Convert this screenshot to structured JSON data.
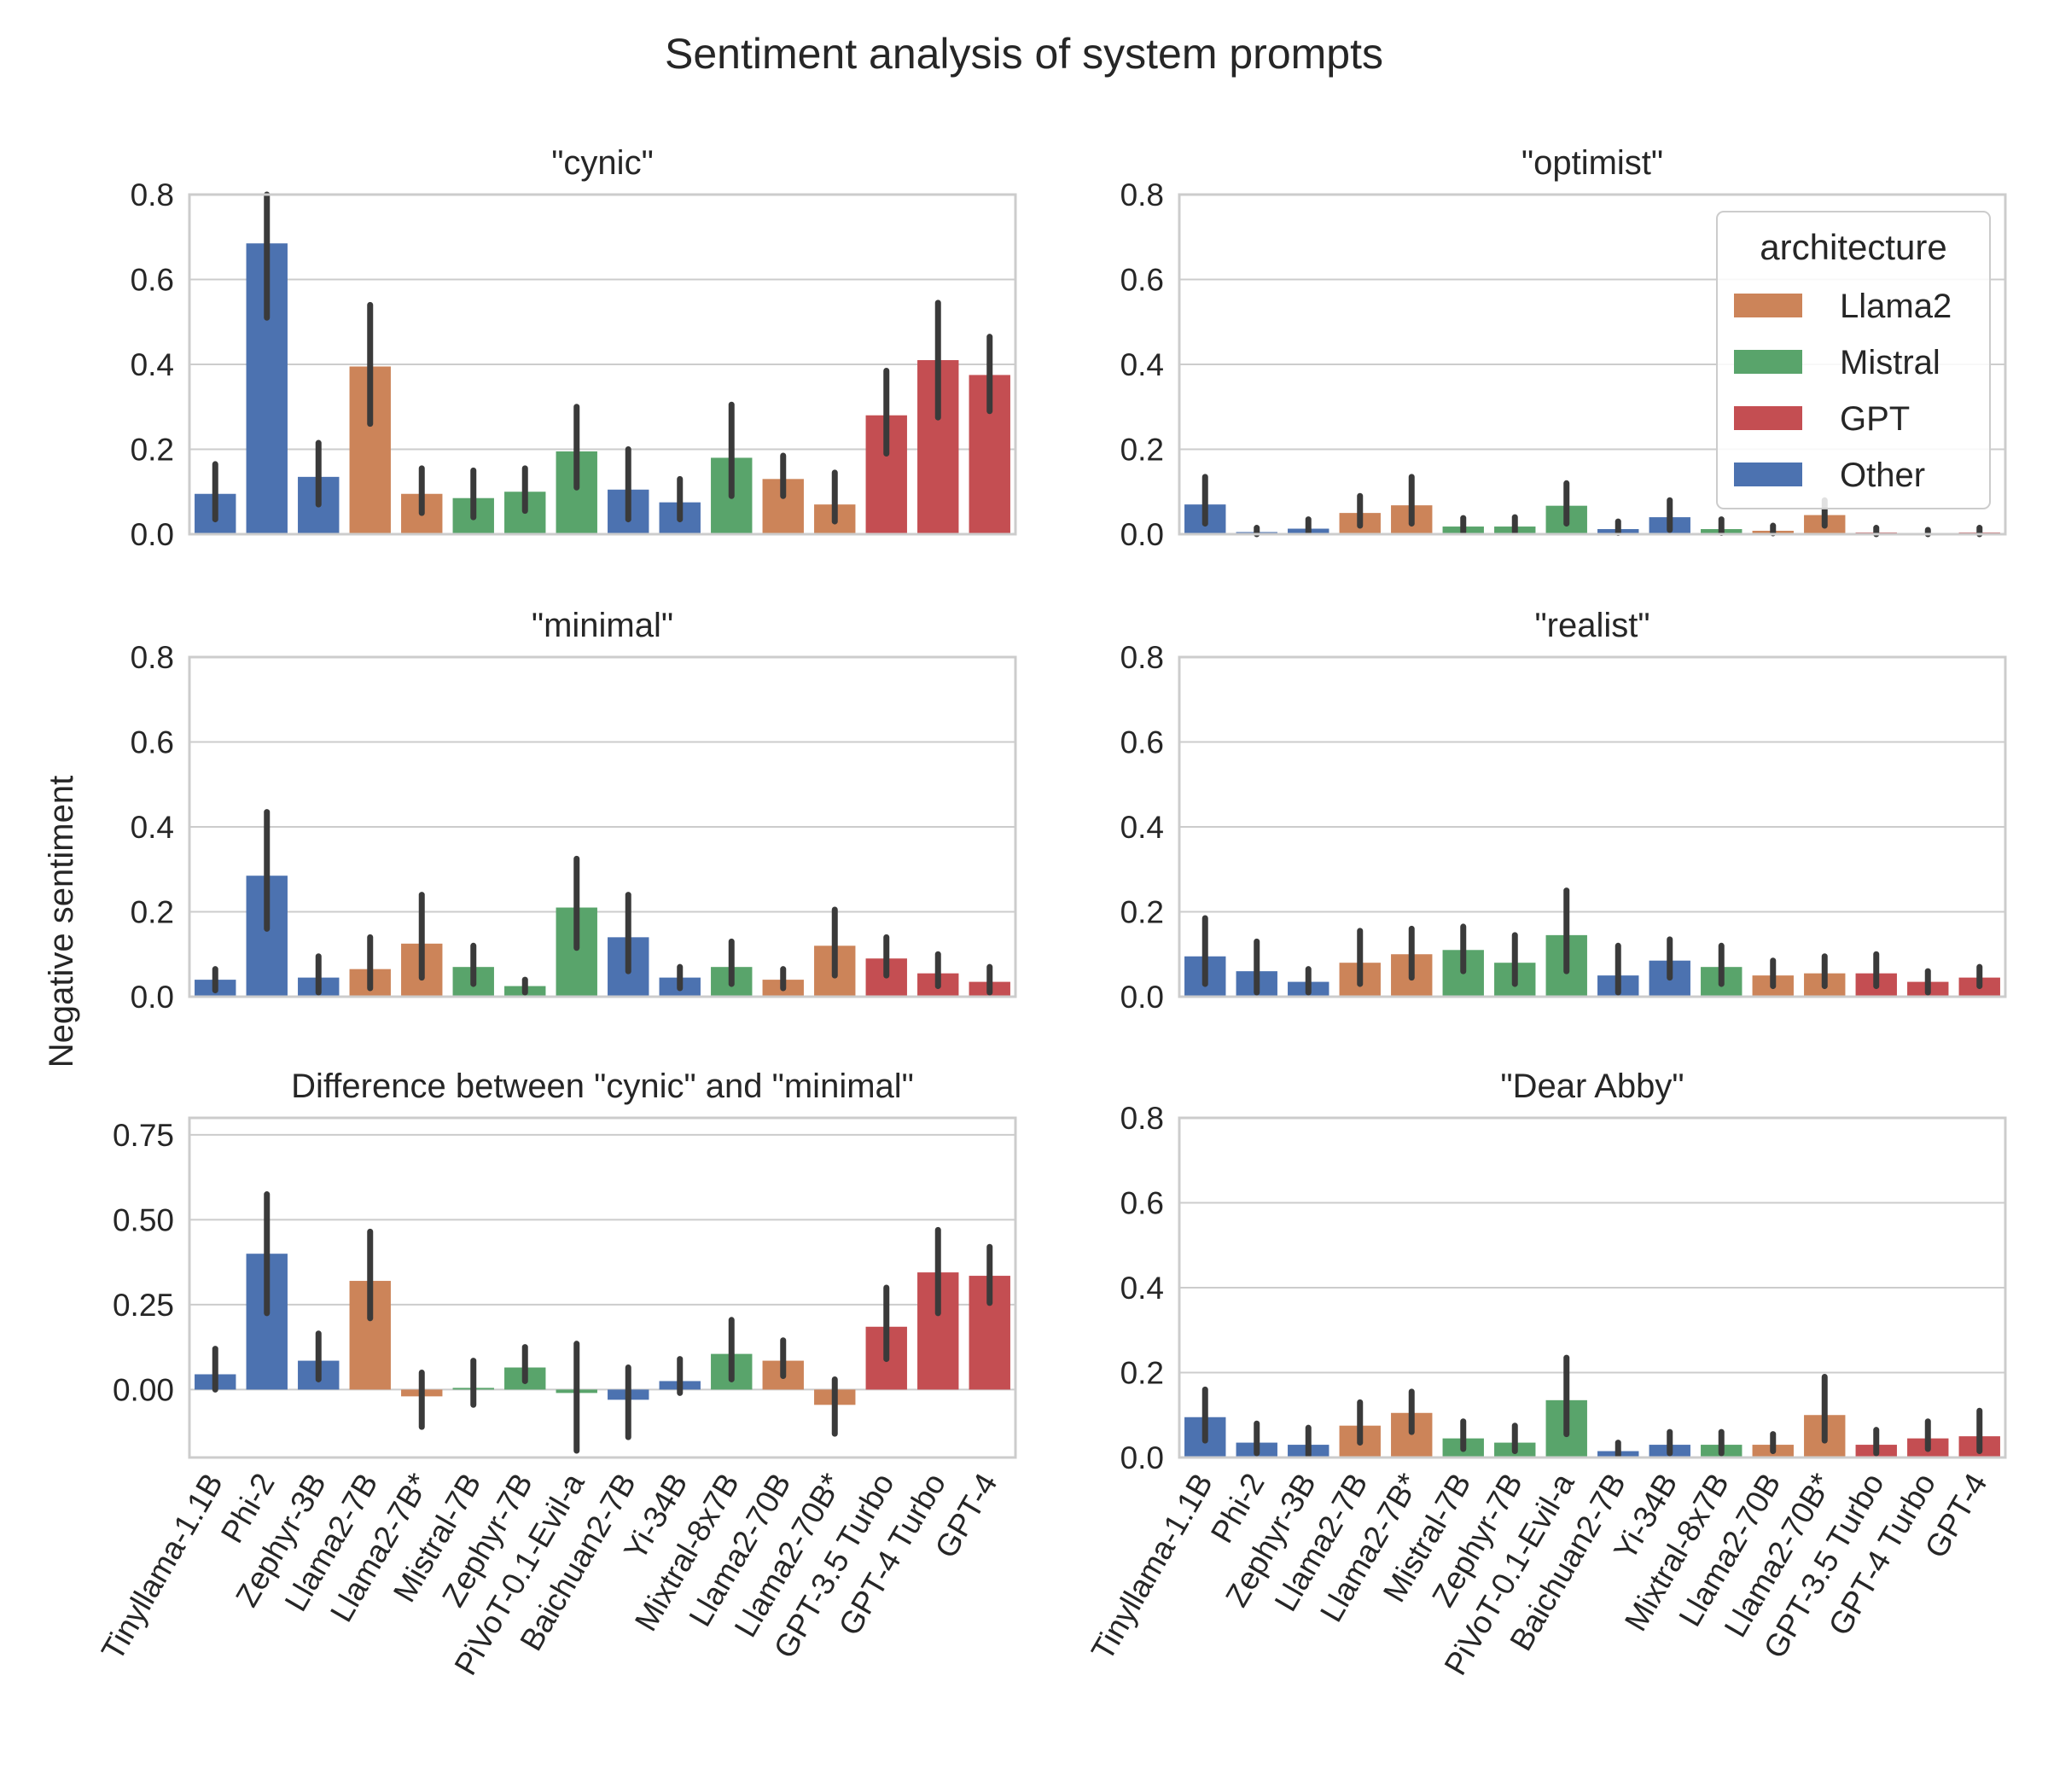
{
  "figure": {
    "title": "Sentiment analysis of system prompts",
    "ylabel": "Negative sentiment"
  },
  "colors": {
    "Llama2": "#cc8459",
    "Mistral": "#59a46b",
    "GPT": "#c44e52",
    "Other": "#4c72b0",
    "grid": "#cccccc",
    "errorbar": "#3a3a3a",
    "text": "#262626"
  },
  "legend": {
    "title": "architecture",
    "placement": "top-right",
    "entries": [
      "Llama2",
      "Mistral",
      "GPT",
      "Other"
    ]
  },
  "models": [
    "Tinyllama-1.1B",
    "Phi-2",
    "Zephyr-3B",
    "Llama2-7B",
    "Llama2-7B*",
    "Mistral-7B",
    "Zephyr-7B",
    "PiVoT-0.1-Evil-a",
    "Baichuan2-7B",
    "Yi-34B",
    "Mixtral-8x7B",
    "Llama2-70B",
    "Llama2-70B*",
    "GPT-3.5 Turbo",
    "GPT-4 Turbo",
    "GPT-4"
  ],
  "architectures": [
    "Other",
    "Other",
    "Other",
    "Llama2",
    "Llama2",
    "Mistral",
    "Mistral",
    "Mistral",
    "Other",
    "Other",
    "Mistral",
    "Llama2",
    "Llama2",
    "GPT",
    "GPT",
    "GPT"
  ],
  "chart_data": [
    {
      "type": "bar",
      "title": "\"cynic\"",
      "ylim": [
        0,
        0.8
      ],
      "yticks": [
        0.0,
        0.2,
        0.4,
        0.6,
        0.8
      ],
      "ytick_labels": [
        "0.0",
        "0.2",
        "0.4",
        "0.6",
        "0.8"
      ],
      "values": [
        0.095,
        0.685,
        0.135,
        0.395,
        0.095,
        0.085,
        0.1,
        0.195,
        0.105,
        0.075,
        0.18,
        0.13,
        0.07,
        0.28,
        0.41,
        0.375
      ],
      "err_low": [
        0.035,
        0.51,
        0.07,
        0.26,
        0.05,
        0.04,
        0.055,
        0.11,
        0.035,
        0.035,
        0.09,
        0.09,
        0.03,
        0.19,
        0.275,
        0.29
      ],
      "err_high": [
        0.165,
        0.8,
        0.215,
        0.54,
        0.155,
        0.15,
        0.155,
        0.3,
        0.2,
        0.13,
        0.305,
        0.185,
        0.145,
        0.385,
        0.545,
        0.465
      ],
      "show_xticks": false
    },
    {
      "type": "bar",
      "title": "\"optimist\"",
      "ylim": [
        0,
        0.8
      ],
      "yticks": [
        0.0,
        0.2,
        0.4,
        0.6,
        0.8
      ],
      "ytick_labels": [
        "0.0",
        "0.2",
        "0.4",
        "0.6",
        "0.8"
      ],
      "values": [
        0.07,
        0.005,
        0.013,
        0.05,
        0.068,
        0.018,
        0.018,
        0.067,
        0.012,
        0.04,
        0.012,
        0.008,
        0.045,
        0.004,
        0.002,
        0.004
      ],
      "err_low": [
        0.025,
        0.0,
        0.004,
        0.02,
        0.025,
        0.005,
        0.005,
        0.025,
        0.003,
        0.01,
        0.003,
        0.002,
        0.02,
        0.0,
        0.0,
        0.0
      ],
      "err_high": [
        0.135,
        0.015,
        0.035,
        0.09,
        0.135,
        0.038,
        0.04,
        0.12,
        0.03,
        0.08,
        0.035,
        0.02,
        0.08,
        0.015,
        0.01,
        0.015
      ],
      "legend": true,
      "show_xticks": false
    },
    {
      "type": "bar",
      "title": "\"minimal\"",
      "ylim": [
        0,
        0.8
      ],
      "yticks": [
        0.0,
        0.2,
        0.4,
        0.6,
        0.8
      ],
      "ytick_labels": [
        "0.0",
        "0.2",
        "0.4",
        "0.6",
        "0.8"
      ],
      "values": [
        0.04,
        0.285,
        0.045,
        0.065,
        0.125,
        0.07,
        0.025,
        0.21,
        0.14,
        0.045,
        0.07,
        0.04,
        0.12,
        0.09,
        0.055,
        0.035
      ],
      "err_low": [
        0.015,
        0.16,
        0.01,
        0.02,
        0.045,
        0.03,
        0.01,
        0.115,
        0.06,
        0.02,
        0.03,
        0.02,
        0.05,
        0.05,
        0.025,
        0.01
      ],
      "err_high": [
        0.065,
        0.435,
        0.095,
        0.14,
        0.24,
        0.12,
        0.04,
        0.325,
        0.24,
        0.07,
        0.13,
        0.065,
        0.205,
        0.14,
        0.1,
        0.07
      ],
      "ylabel": "Negative sentiment",
      "show_xticks": false
    },
    {
      "type": "bar",
      "title": "\"realist\"",
      "ylim": [
        0,
        0.8
      ],
      "yticks": [
        0.0,
        0.2,
        0.4,
        0.6,
        0.8
      ],
      "ytick_labels": [
        "0.0",
        "0.2",
        "0.4",
        "0.6",
        "0.8"
      ],
      "values": [
        0.095,
        0.06,
        0.035,
        0.08,
        0.1,
        0.11,
        0.08,
        0.145,
        0.05,
        0.085,
        0.07,
        0.05,
        0.055,
        0.055,
        0.035,
        0.045
      ],
      "err_low": [
        0.03,
        0.01,
        0.01,
        0.03,
        0.045,
        0.06,
        0.03,
        0.06,
        0.01,
        0.045,
        0.03,
        0.025,
        0.025,
        0.025,
        0.01,
        0.025
      ],
      "err_high": [
        0.185,
        0.13,
        0.065,
        0.155,
        0.16,
        0.165,
        0.145,
        0.25,
        0.12,
        0.135,
        0.12,
        0.085,
        0.095,
        0.1,
        0.06,
        0.07
      ],
      "show_xticks": false
    },
    {
      "type": "bar",
      "title": "Difference between \"cynic\" and \"minimal\"",
      "ylim": [
        -0.2,
        0.8
      ],
      "yticks": [
        0.0,
        0.25,
        0.5,
        0.75
      ],
      "ytick_labels": [
        "0.00",
        "0.25",
        "0.50",
        "0.75"
      ],
      "values": [
        0.045,
        0.4,
        0.085,
        0.32,
        -0.02,
        0.005,
        0.065,
        -0.01,
        -0.03,
        0.025,
        0.105,
        0.085,
        -0.045,
        0.185,
        0.345,
        0.335
      ],
      "err_low": [
        0.0,
        0.225,
        0.03,
        0.21,
        -0.11,
        -0.045,
        0.025,
        -0.18,
        -0.14,
        -0.01,
        0.03,
        0.04,
        -0.13,
        0.09,
        0.225,
        0.255
      ],
      "err_high": [
        0.12,
        0.575,
        0.165,
        0.465,
        0.05,
        0.085,
        0.125,
        0.135,
        0.065,
        0.09,
        0.205,
        0.145,
        0.03,
        0.3,
        0.47,
        0.42
      ],
      "show_xticks": true
    },
    {
      "type": "bar",
      "title": "\"Dear Abby\"",
      "ylim": [
        0,
        0.8
      ],
      "yticks": [
        0.0,
        0.2,
        0.4,
        0.6,
        0.8
      ],
      "ytick_labels": [
        "0.0",
        "0.2",
        "0.4",
        "0.6",
        "0.8"
      ],
      "values": [
        0.095,
        0.035,
        0.03,
        0.075,
        0.105,
        0.045,
        0.035,
        0.135,
        0.015,
        0.03,
        0.03,
        0.03,
        0.1,
        0.03,
        0.045,
        0.05
      ],
      "err_low": [
        0.04,
        0.01,
        0.005,
        0.035,
        0.06,
        0.02,
        0.015,
        0.055,
        0.005,
        0.01,
        0.01,
        0.015,
        0.04,
        0.01,
        0.02,
        0.015
      ],
      "err_high": [
        0.16,
        0.08,
        0.07,
        0.13,
        0.155,
        0.085,
        0.075,
        0.235,
        0.035,
        0.06,
        0.06,
        0.055,
        0.19,
        0.065,
        0.085,
        0.11
      ],
      "show_xticks": true
    }
  ]
}
